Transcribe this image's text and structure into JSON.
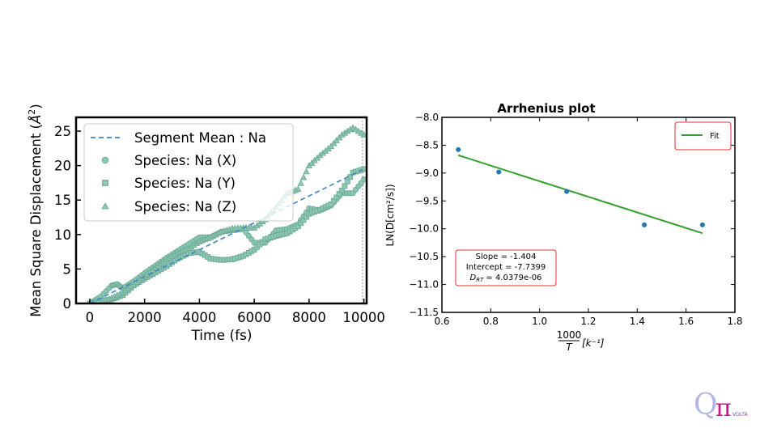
{
  "msd_chart": {
    "type": "scatter",
    "xlabel": "Time (fs)",
    "ylabel_prefix": "Mean Square Displacement (",
    "ylabel_unit": "Å",
    "ylabel_sup": "2",
    "ylabel_suffix": ")",
    "x_ticks": [
      "0",
      "2000",
      "4000",
      "6000",
      "8000",
      "10000"
    ],
    "y_ticks": [
      "0",
      "5",
      "10",
      "15",
      "20",
      "25"
    ],
    "xlim": [
      -500,
      10100
    ],
    "ylim": [
      0,
      27
    ],
    "vline_x": 9950,
    "legend": [
      "Segment Mean : Na",
      "Species: Na (X)",
      "Species: Na (Y)",
      "Species: Na (Z)"
    ],
    "segment_mean": {
      "x": [
        0,
        10000
      ],
      "y": [
        0,
        19.5
      ]
    },
    "series": [
      {
        "name": "Species: Na (X)",
        "marker": "circle",
        "color": "#8cc7b5",
        "x": [
          0,
          400,
          800,
          1000,
          1200,
          1600,
          2000,
          2400,
          2800,
          3200,
          3600,
          4000,
          4400,
          4800,
          5200,
          5600,
          6000,
          6400,
          6800,
          7200,
          7600,
          8000,
          8400,
          8800,
          9200,
          9600,
          10000
        ],
        "y": [
          0,
          1,
          2.6,
          2.8,
          2.2,
          3.2,
          4.4,
          5.5,
          6.6,
          7.6,
          8.6,
          9.6,
          9.6,
          10.4,
          10.6,
          10.8,
          8.8,
          8.8,
          10.6,
          10.8,
          11.5,
          13.8,
          13.5,
          14.2,
          16,
          16,
          18
        ]
      },
      {
        "name": "Species: Na (Y)",
        "marker": "square",
        "color": "#8cc7b5",
        "x": [
          0,
          400,
          800,
          1200,
          1600,
          2000,
          2400,
          2800,
          3200,
          3600,
          4000,
          4400,
          4800,
          5200,
          5600,
          6000,
          6400,
          6800,
          7200,
          7600,
          8000,
          8400,
          8800,
          9200,
          9600,
          10000
        ],
        "y": [
          0,
          0.4,
          0.6,
          1.2,
          2.6,
          3.6,
          4.5,
          5.4,
          6.5,
          7.3,
          7.5,
          6.5,
          6.3,
          6.4,
          6.9,
          7.8,
          9.3,
          9.8,
          10.2,
          11.2,
          13,
          13.6,
          14.4,
          16.4,
          19,
          19.5
        ]
      },
      {
        "name": "Species: Na (Z)",
        "marker": "triangle",
        "color": "#8cc7b5",
        "x": [
          0,
          400,
          800,
          1200,
          1600,
          2000,
          2400,
          2800,
          3200,
          3600,
          4000,
          4400,
          4800,
          5200,
          5600,
          6000,
          6400,
          6800,
          7200,
          7600,
          8000,
          8400,
          8800,
          9200,
          9600,
          10000
        ],
        "y": [
          0,
          0.3,
          0.8,
          1.6,
          2.8,
          4,
          5.2,
          6.4,
          7.3,
          8,
          9,
          9.6,
          10.4,
          10.9,
          11,
          11,
          12.2,
          14,
          16,
          16.6,
          20,
          21.5,
          22.8,
          24.5,
          25.5,
          24.5
        ]
      }
    ]
  },
  "arrhenius_chart": {
    "type": "scatter",
    "title": "Arrhenius plot",
    "ylabel": "LN(D[cm²/s])",
    "xlabel_num": "1000",
    "xlabel_den": "T",
    "xlabel_unit": "[k⁻¹]",
    "x_ticks": [
      "0.6",
      "0.8",
      "1.0",
      "1.2",
      "1.4",
      "1.6",
      "1.8"
    ],
    "y_ticks": [
      "−8.0",
      "−8.5",
      "−9.0",
      "−9.5",
      "−10.0",
      "−10.5",
      "−11.0",
      "−11.5"
    ],
    "xlim": [
      0.6,
      1.8
    ],
    "ylim": [
      -11.5,
      -8.0
    ],
    "legend": [
      "Fit"
    ],
    "points": {
      "x": [
        0.667,
        0.833,
        1.111,
        1.429,
        1.667
      ],
      "y": [
        -8.58,
        -8.98,
        -9.33,
        -9.93,
        -9.93
      ]
    },
    "fit": {
      "x": [
        0.667,
        1.667
      ],
      "y": [
        -8.68,
        -10.08
      ]
    },
    "stats": {
      "slope": "Slope = -1.404",
      "intercept": "Intercept = -7.7399",
      "drt_symbol": "D",
      "drt_sub": "RT",
      "drt_value": "= 4.0379e-06"
    }
  },
  "logo": {
    "q": "Q",
    "pi": "π",
    "word": "VOLTA"
  }
}
